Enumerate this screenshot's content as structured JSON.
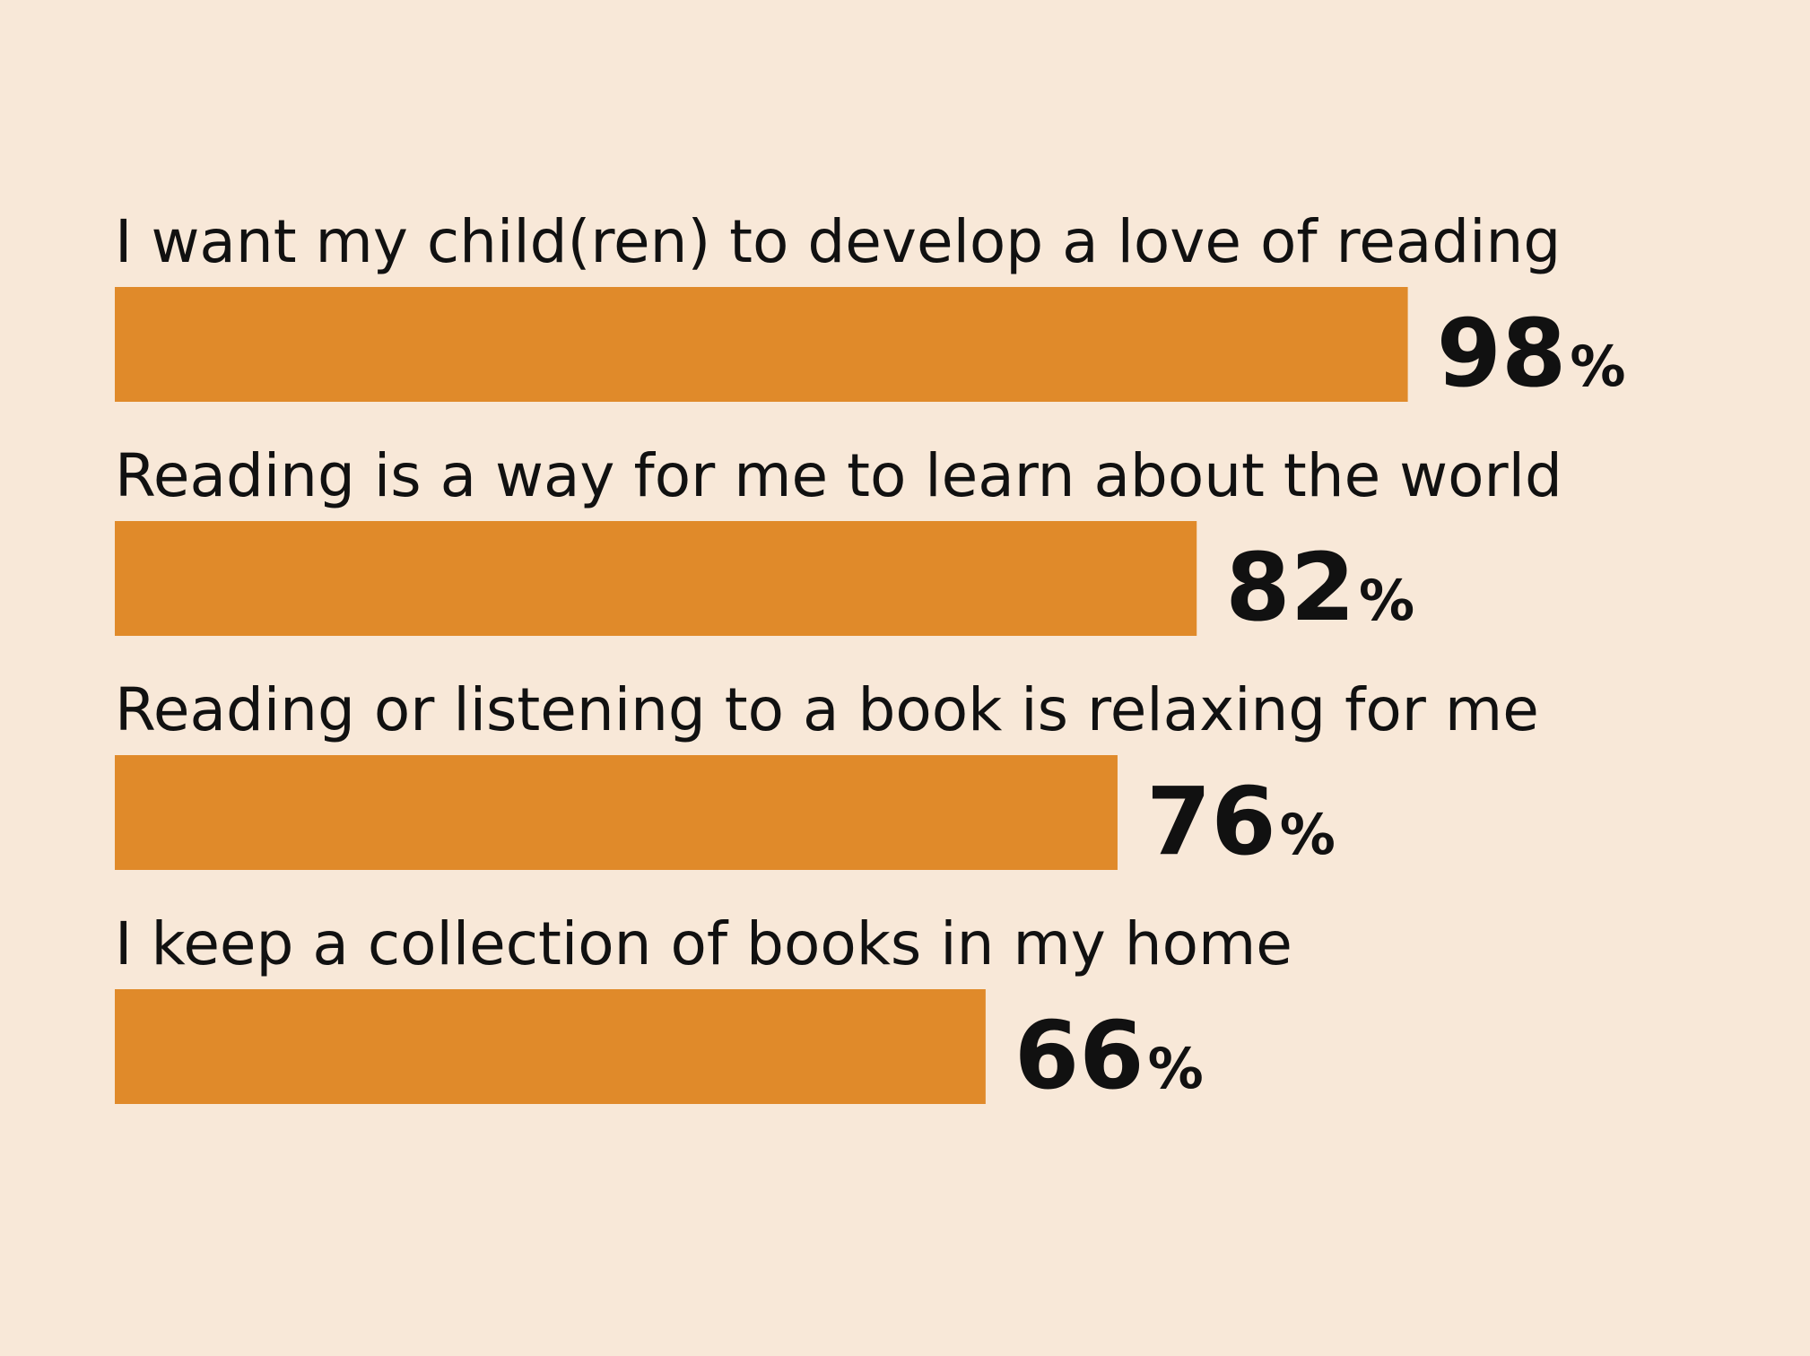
{
  "colors": {
    "background": "#f8e8d8",
    "bar": "#e08a2a",
    "text": "#111111"
  },
  "chart_data": {
    "type": "bar",
    "orientation": "horizontal",
    "title": "",
    "xlabel": "",
    "ylabel": "",
    "xlim": [
      0,
      100
    ],
    "grid": false,
    "legend": "none",
    "unit": "%",
    "categories": [
      "I want my child(ren) to develop a love of reading",
      "Reading is a way for me to learn about the world",
      "Reading or listening to a book is relaxing for me",
      "I keep a collection of books in my home"
    ],
    "values": [
      98,
      82,
      76,
      66
    ]
  }
}
